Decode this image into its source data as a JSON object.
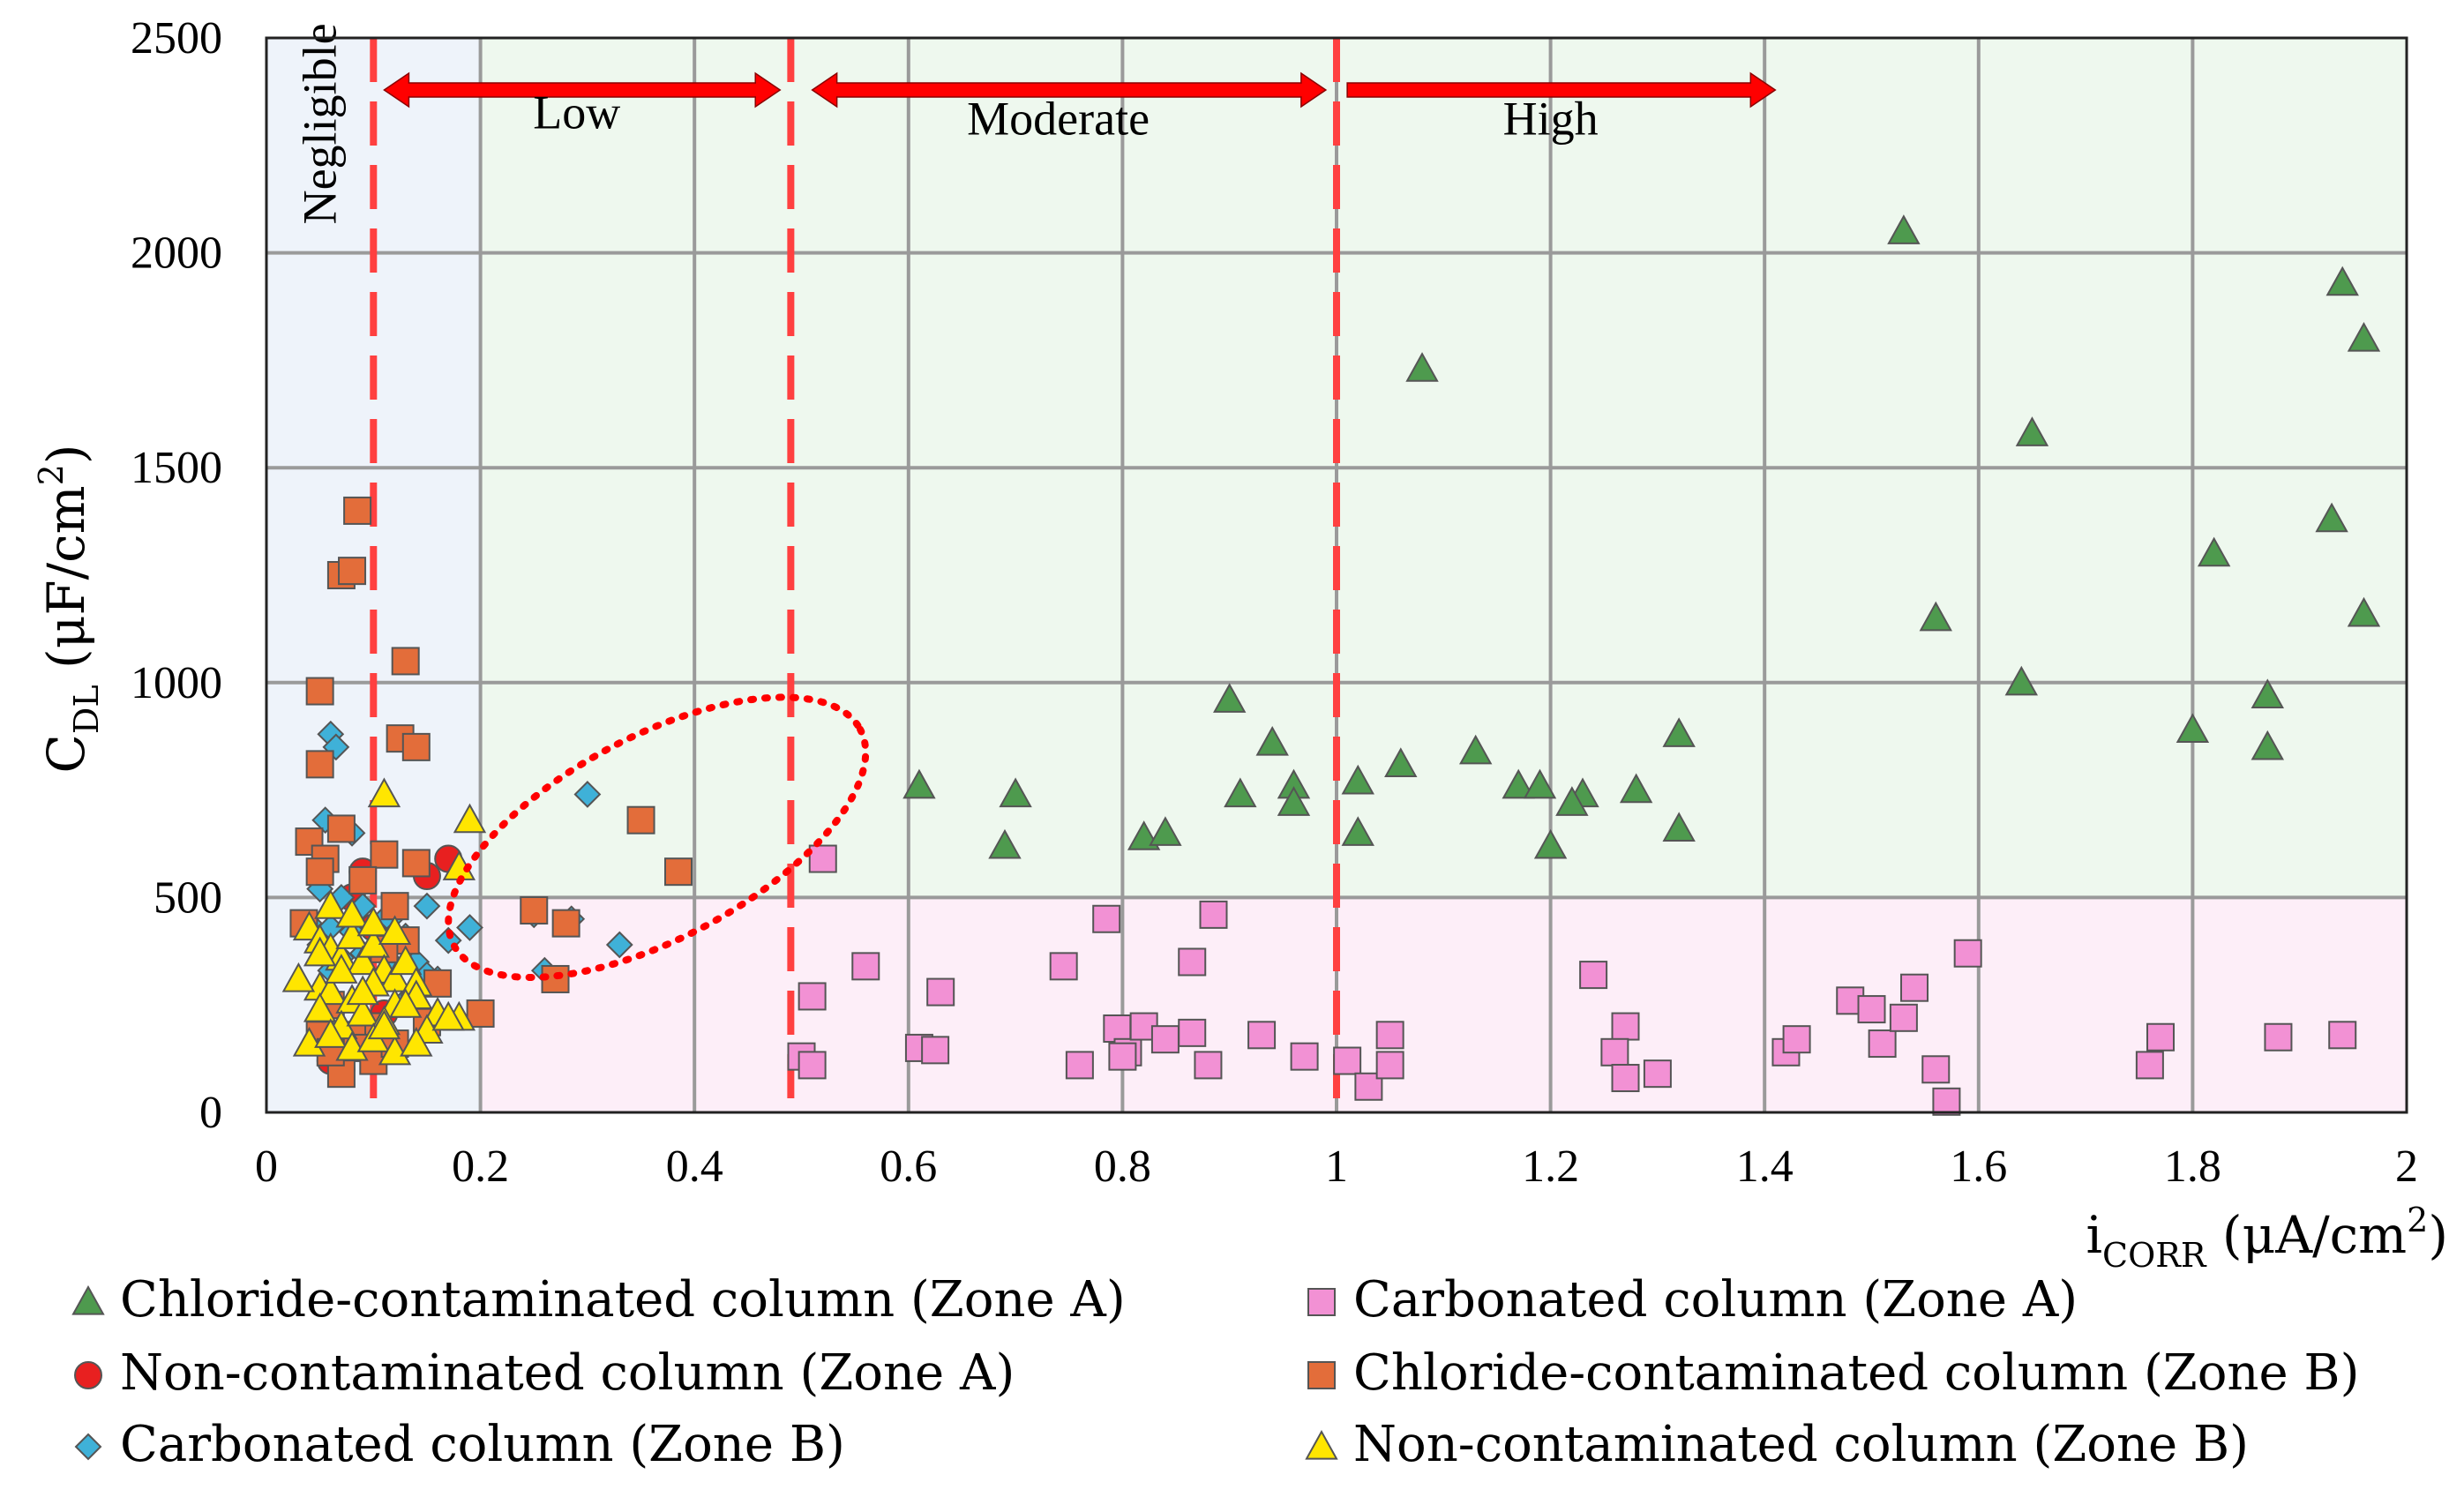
{
  "chart_data": {
    "type": "scatter",
    "title": "",
    "xlabel": {
      "main": "i",
      "sub": "CORR",
      "unit": " (μA/cm",
      "sup": "2",
      "close": ")"
    },
    "ylabel": {
      "main": "C",
      "sub": "DL",
      "unit": " (μF/cm",
      "sup": "2",
      "close": ")"
    },
    "xlim": [
      0,
      2
    ],
    "ylim": [
      0,
      2500
    ],
    "x_ticks": [
      "0",
      "0.2",
      "0.4",
      "0.6",
      "0.8",
      "1",
      "1.2",
      "1.4",
      "1.6",
      "1.8",
      "2"
    ],
    "y_ticks": [
      "0",
      "500",
      "1000",
      "1500",
      "2000",
      "2500"
    ],
    "grid": true,
    "legend_position": "bottom",
    "region_colors": {
      "negligible": "#eef3fa",
      "upper": "#eef8ee",
      "lower": "#fdeef8"
    },
    "region_bounds": {
      "negligible_x": [
        0,
        0.2
      ],
      "lower_y_max": 500
    },
    "zone_lines_x": [
      0.1,
      0.49,
      1.0
    ],
    "zone_line_color": "#ff4040",
    "arrow_color": "#ff0000",
    "zones": [
      {
        "label": "Negligible",
        "vertical": true,
        "anchor_x": 0.05,
        "anchor_y": 2300
      },
      {
        "label": "Low",
        "arrow": [
          0.11,
          0.48
        ],
        "label_x": 0.29,
        "label_y": 2290
      },
      {
        "label": "Moderate",
        "arrow": [
          0.51,
          0.99
        ],
        "label_x": 0.74,
        "label_y": 2275
      },
      {
        "label": "High",
        "arrow": [
          1.01,
          1.41
        ],
        "label_x": 1.2,
        "label_y": 2275,
        "one_sided": true
      }
    ],
    "highlight_ellipse": {
      "cx": 0.365,
      "cy": 640,
      "rx": 0.215,
      "ry": 235,
      "rotation_deg": -28,
      "color": "#ff0000"
    },
    "series": [
      {
        "name": "Chloride-contaminated column (Zone A)",
        "marker": "triangle",
        "color": "#4e9a4e",
        "x": [
          1.53,
          1.94,
          1.96,
          1.08,
          1.65,
          1.93,
          1.82,
          1.56,
          1.96,
          1.64,
          0.9,
          1.87,
          1.8,
          1.87,
          1.32,
          0.94,
          1.13,
          1.06,
          0.61,
          0.7,
          0.91,
          0.96,
          0.96,
          1.02,
          1.02,
          1.17,
          1.19,
          1.28,
          1.23,
          1.22,
          1.32,
          0.69,
          0.82,
          0.84,
          1.2
        ],
        "y": [
          2050,
          1930,
          1800,
          1730,
          1580,
          1380,
          1300,
          1150,
          1160,
          1000,
          960,
          970,
          890,
          850,
          880,
          860,
          840,
          810,
          760,
          740,
          740,
          760,
          720,
          770,
          650,
          760,
          760,
          750,
          740,
          720,
          660,
          620,
          640,
          650,
          620
        ]
      },
      {
        "name": "Non-contaminated column (Zone A)",
        "marker": "circle",
        "color": "#e82020",
        "x": [
          0.17,
          0.15,
          0.09,
          0.08,
          0.06,
          0.07,
          0.11,
          0.1
        ],
        "y": [
          590,
          550,
          560,
          500,
          120,
          100,
          230,
          430
        ]
      },
      {
        "name": "Carbonated column (Zone B)",
        "marker": "diamond",
        "color": "#3fb1d8",
        "x": [
          0.06,
          0.065,
          0.055,
          0.08,
          0.3,
          0.285,
          0.25,
          0.33,
          0.26,
          0.05,
          0.07,
          0.09,
          0.12,
          0.11,
          0.04,
          0.06,
          0.1,
          0.08,
          0.13,
          0.19,
          0.15,
          0.17,
          0.05,
          0.11,
          0.09,
          0.07,
          0.14,
          0.12,
          0.06,
          0.15,
          0.16,
          0.13
        ],
        "y": [
          880,
          850,
          680,
          650,
          740,
          450,
          460,
          390,
          330,
          520,
          500,
          480,
          460,
          450,
          440,
          430,
          430,
          420,
          410,
          430,
          480,
          400,
          390,
          380,
          370,
          360,
          350,
          340,
          330,
          320,
          310,
          260
        ]
      },
      {
        "name": "Carbonated column (Zone A)",
        "marker": "square",
        "color": "#f291d4",
        "x": [
          0.52,
          0.51,
          0.56,
          0.63,
          0.745,
          0.785,
          0.885,
          0.865,
          0.5,
          0.51,
          0.61,
          0.625,
          0.76,
          0.795,
          0.805,
          0.82,
          0.8,
          0.84,
          0.865,
          0.88,
          0.93,
          0.97,
          1.01,
          1.05,
          1.03,
          1.05,
          1.24,
          1.27,
          1.26,
          1.27,
          1.3,
          1.42,
          1.43,
          1.48,
          1.5,
          1.51,
          1.53,
          1.54,
          1.56,
          1.57,
          1.59,
          1.76,
          1.77,
          1.88,
          1.94
        ],
        "y": [
          590,
          270,
          340,
          280,
          340,
          450,
          460,
          350,
          130,
          110,
          150,
          145,
          110,
          195,
          140,
          200,
          130,
          170,
          185,
          110,
          180,
          130,
          120,
          180,
          60,
          110,
          320,
          200,
          140,
          80,
          90,
          140,
          170,
          260,
          240,
          160,
          220,
          290,
          100,
          25,
          370,
          110,
          175,
          175,
          180
        ]
      },
      {
        "name": "Chloride-contaminated column (Zone B)",
        "marker": "square",
        "color": "#e36d3a",
        "x": [
          0.085,
          0.07,
          0.08,
          0.13,
          0.05,
          0.125,
          0.14,
          0.05,
          0.35,
          0.385,
          0.07,
          0.04,
          0.055,
          0.11,
          0.05,
          0.25,
          0.28,
          0.27,
          0.2,
          0.14,
          0.09,
          0.12,
          0.13,
          0.11,
          0.16,
          0.06,
          0.05,
          0.1,
          0.08,
          0.09,
          0.1,
          0.15,
          0.07,
          0.06,
          0.035,
          0.12
        ],
        "y": [
          1400,
          1250,
          1260,
          1050,
          980,
          870,
          850,
          810,
          680,
          560,
          660,
          630,
          590,
          600,
          560,
          470,
          440,
          310,
          230,
          580,
          540,
          480,
          400,
          380,
          300,
          250,
          180,
          200,
          180,
          150,
          120,
          210,
          90,
          140,
          440,
          160
        ]
      },
      {
        "name": "Non-contaminated column (Zone B)",
        "marker": "triangle",
        "color": "#ffe600",
        "x": [
          0.11,
          0.19,
          0.18,
          0.04,
          0.05,
          0.06,
          0.07,
          0.08,
          0.09,
          0.1,
          0.11,
          0.12,
          0.13,
          0.14,
          0.05,
          0.06,
          0.08,
          0.1,
          0.12,
          0.14,
          0.16,
          0.18,
          0.03,
          0.05,
          0.07,
          0.09,
          0.11,
          0.13,
          0.15,
          0.17,
          0.04,
          0.06,
          0.08,
          0.1,
          0.12,
          0.14,
          0.05,
          0.07,
          0.09,
          0.11,
          0.06,
          0.08,
          0.1,
          0.12
        ],
        "y": [
          740,
          680,
          570,
          430,
          400,
          380,
          360,
          410,
          350,
          390,
          330,
          310,
          350,
          300,
          290,
          280,
          260,
          300,
          250,
          270,
          230,
          220,
          310,
          240,
          200,
          230,
          210,
          250,
          190,
          220,
          160,
          180,
          150,
          170,
          140,
          160,
          370,
          330,
          280,
          200,
          480,
          460,
          440,
          420
        ]
      }
    ],
    "legend_order": [
      0,
      3,
      1,
      4,
      2,
      5
    ]
  }
}
